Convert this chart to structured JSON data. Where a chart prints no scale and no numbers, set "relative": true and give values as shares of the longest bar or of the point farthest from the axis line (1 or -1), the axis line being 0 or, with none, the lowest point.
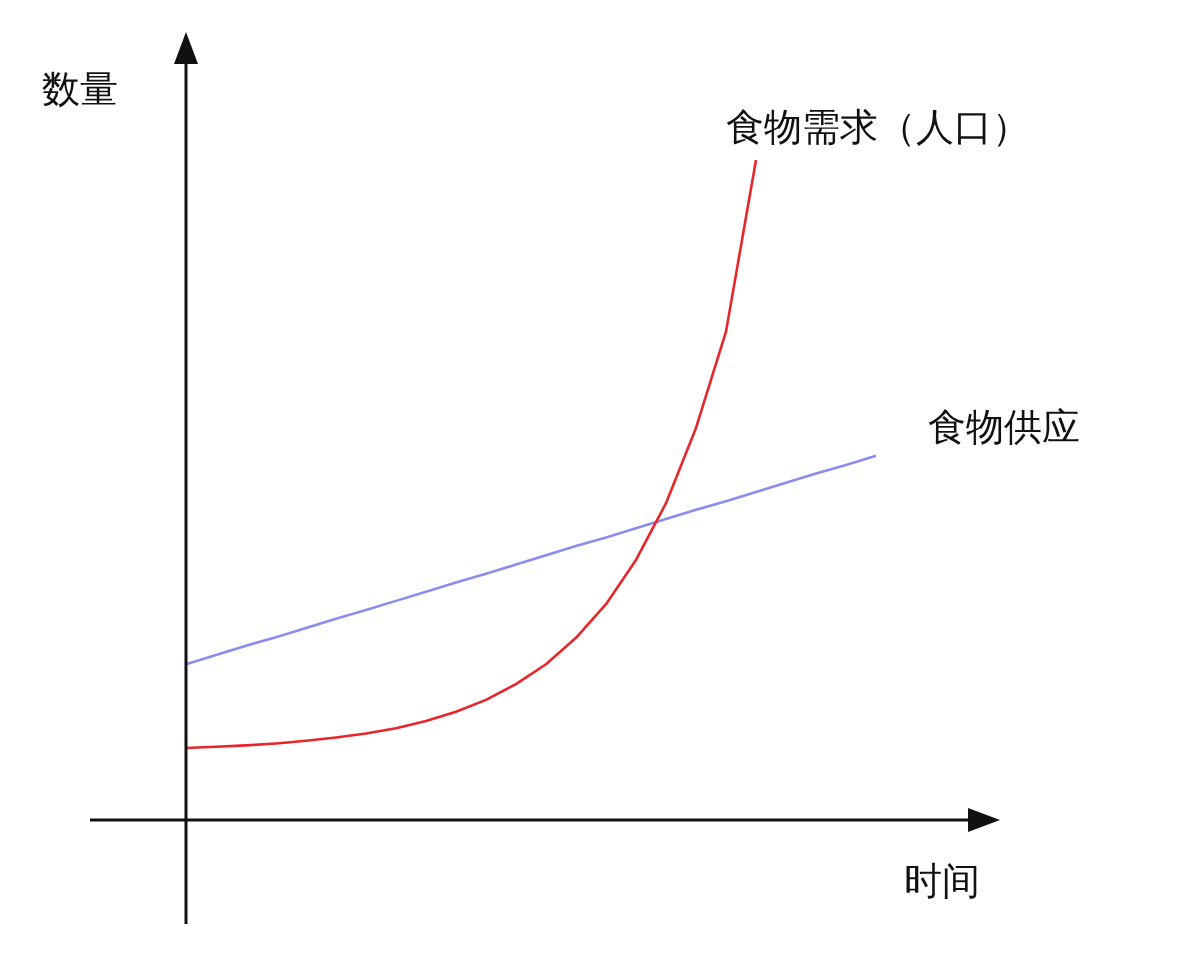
{
  "chart_data": {
    "type": "line",
    "relative": true,
    "xlabel": "时间",
    "ylabel": "数量",
    "categories": [
      null,
      null,
      null,
      null,
      null,
      null,
      null,
      null,
      null,
      null,
      null,
      null,
      null,
      null,
      null,
      null,
      null,
      null,
      null,
      null,
      null,
      null,
      null,
      null
    ],
    "series": [
      {
        "name": "食物需求（人口）",
        "color": "#e8262a",
        "values": [
          0.109,
          0.111,
          0.113,
          0.116,
          0.12,
          0.125,
          0.131,
          0.139,
          0.15,
          0.164,
          0.182,
          0.206,
          0.236,
          0.276,
          0.327,
          0.394,
          0.48,
          0.594,
          0.74,
          1.0,
          null,
          null,
          null,
          null
        ]
      },
      {
        "name": "食物供应",
        "color": "#8c8cf0",
        "values": [
          0.236,
          0.25,
          0.264,
          0.277,
          0.291,
          0.305,
          0.318,
          0.332,
          0.346,
          0.36,
          0.373,
          0.387,
          0.401,
          0.415,
          0.428,
          0.442,
          0.456,
          0.47,
          0.483,
          0.497,
          0.511,
          0.525,
          0.538,
          0.552
        ]
      }
    ],
    "legend": false,
    "marker": "none",
    "line_style": "solid"
  }
}
